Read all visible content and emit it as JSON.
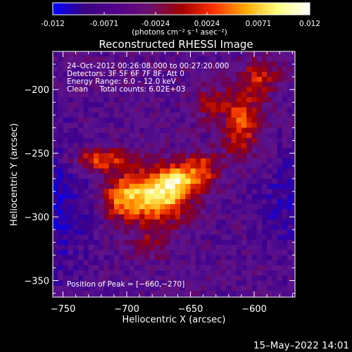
{
  "colorbar": {
    "ticks": [
      "-0.012",
      "-0.0071",
      "-0.0024",
      "0.0024",
      "0.0071",
      "0.012"
    ],
    "unit_label": "(photons cm⁻² s⁻¹ asec⁻²)",
    "colors": [
      "#0000ff",
      "#3a0080",
      "#54008a",
      "#6a1070",
      "#a00000",
      "#ff3000",
      "#ffaa00",
      "#ffff80",
      "#ffffff"
    ]
  },
  "chart_data": {
    "type": "heatmap",
    "title": "Reconstructed RHESSI Image",
    "xlabel": "Heliocentric X (arcsec)",
    "ylabel": "Heliocentric Y (arcsec)",
    "xlim": [
      -758,
      -568
    ],
    "ylim": [
      -363,
      -170
    ],
    "xticks": [
      {
        "value": -750,
        "label": "−750"
      },
      {
        "value": -700,
        "label": "−700"
      },
      {
        "value": -650,
        "label": "−650"
      },
      {
        "value": -600,
        "label": "−600"
      }
    ],
    "yticks": [
      {
        "value": -200,
        "label": "−200"
      },
      {
        "value": -250,
        "label": "−250"
      },
      {
        "value": -300,
        "label": "−300"
      },
      {
        "value": -350,
        "label": "−350"
      }
    ],
    "peak": {
      "x": -660,
      "y": -270
    },
    "info_lines": [
      "24–Oct–2012 00:26:08.000 to 00:27:20.000",
      "Detectors: 3F 5F 6F 7F 8F, Att 0",
      "Energy Range: 6.0 – 12.0 keV",
      "Clean     Total counts: 6.02E+03"
    ],
    "peak_text": "Position of Peak = [−660,−270]",
    "timestamp": "15–May–2022 14:01"
  }
}
